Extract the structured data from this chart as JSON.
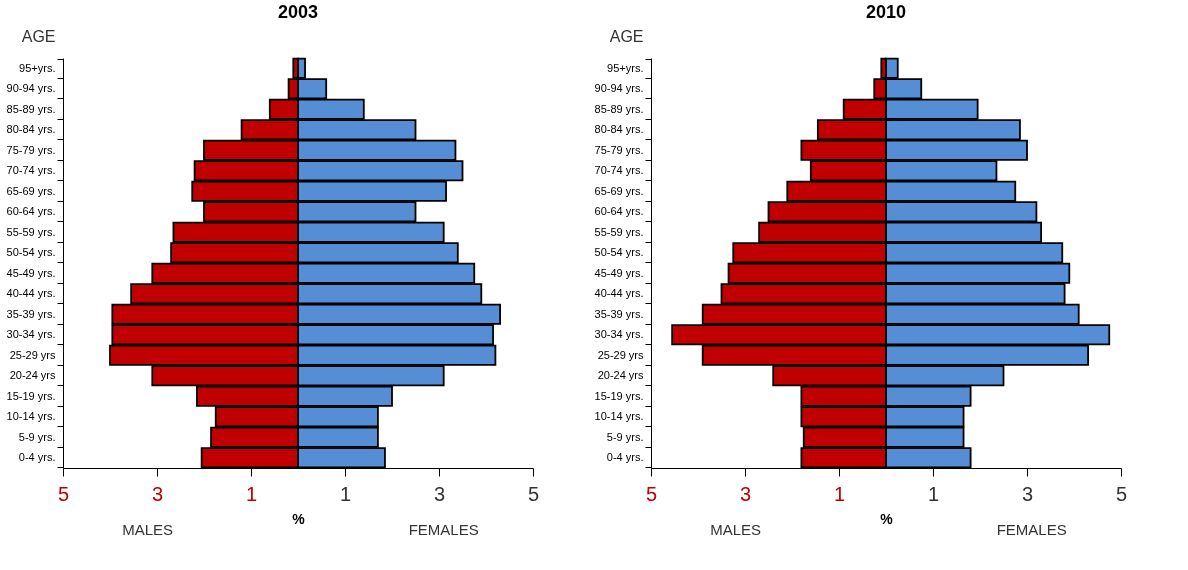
{
  "chart_data": [
    {
      "type": "bar",
      "orientation": "horizontal",
      "stacked": true,
      "title": "2003",
      "xlabel": "%",
      "ylabel": "AGE",
      "annotations": [
        "MALES",
        "FEMALES"
      ],
      "categories": [
        "95+yrs.",
        "90-94 yrs.",
        "85-89 yrs.",
        "80-84 yrs.",
        "75-79 yrs.",
        "70-74 yrs.",
        "65-69 yrs.",
        "60-64 yrs.",
        "55-59 yrs.",
        "50-54 yrs.",
        "45-49 yrs.",
        "40-44 yrs.",
        "35-39 yrs.",
        "30-34 yrs.",
        "25-29 yrs",
        "20-24 yrs",
        "15-19 yrs.",
        "10-14 yrs.",
        "5-9 yrs.",
        "0-4 yrs."
      ],
      "series": [
        {
          "color": "#c00000",
          "values": [
            -0.1,
            -0.2,
            -0.6,
            -1.2,
            -2.0,
            -2.2,
            -2.25,
            -2.0,
            -2.65,
            -2.7,
            -3.1,
            -3.55,
            -3.95,
            -3.95,
            -4.0,
            -3.1,
            -2.15,
            -1.75,
            -1.85,
            -2.05
          ]
        },
        {
          "color": "#558ed5",
          "values": [
            0.15,
            0.6,
            1.4,
            2.5,
            3.35,
            3.5,
            3.15,
            2.5,
            3.1,
            3.4,
            3.75,
            3.9,
            4.3,
            4.15,
            4.2,
            3.1,
            2.0,
            1.7,
            1.7,
            1.85
          ]
        }
      ],
      "xlim": [
        -5,
        5
      ],
      "xticks": [
        {
          "value": -5,
          "label": "5"
        },
        {
          "value": -3,
          "label": "3"
        },
        {
          "value": -1,
          "label": "1"
        },
        1,
        3,
        5
      ]
    },
    {
      "type": "bar",
      "orientation": "horizontal",
      "stacked": true,
      "title": "2010",
      "xlabel": "%",
      "ylabel": "AGE",
      "annotations": [
        "MALES",
        "FEMALES"
      ],
      "categories": [
        "95+yrs.",
        "90-94 yrs.",
        "85-89 yrs.",
        "80-84 yrs.",
        "75-79 yrs.",
        "70-74 yrs.",
        "65-69 yrs.",
        "60-64 yrs.",
        "55-59 yrs.",
        "50-54 yrs.",
        "45-49 yrs.",
        "40-44 yrs.",
        "35-39 yrs.",
        "30-34 yrs.",
        "25-29 yrs",
        "20-24 yrs",
        "15-19 yrs.",
        "10-14 yrs.",
        "5-9 yrs.",
        "0-4 yrs."
      ],
      "series": [
        {
          "color": "#c00000",
          "values": [
            -0.1,
            -0.25,
            -0.9,
            -1.45,
            -1.8,
            -1.6,
            -2.1,
            -2.5,
            -2.7,
            -3.25,
            -3.35,
            -3.5,
            -3.9,
            -4.55,
            -3.9,
            -2.4,
            -1.8,
            -1.8,
            -1.75,
            -1.8
          ]
        },
        {
          "color": "#558ed5",
          "values": [
            0.25,
            0.75,
            1.95,
            2.85,
            3.0,
            2.35,
            2.75,
            3.2,
            3.3,
            3.75,
            3.9,
            3.8,
            4.1,
            4.75,
            4.3,
            2.5,
            1.8,
            1.65,
            1.65,
            1.8
          ]
        }
      ],
      "xlim": [
        -5,
        5
      ],
      "xticks": [
        {
          "value": -5,
          "label": "5"
        },
        {
          "value": -3,
          "label": "3"
        },
        {
          "value": -1,
          "label": "1"
        },
        1,
        3,
        5
      ]
    }
  ]
}
